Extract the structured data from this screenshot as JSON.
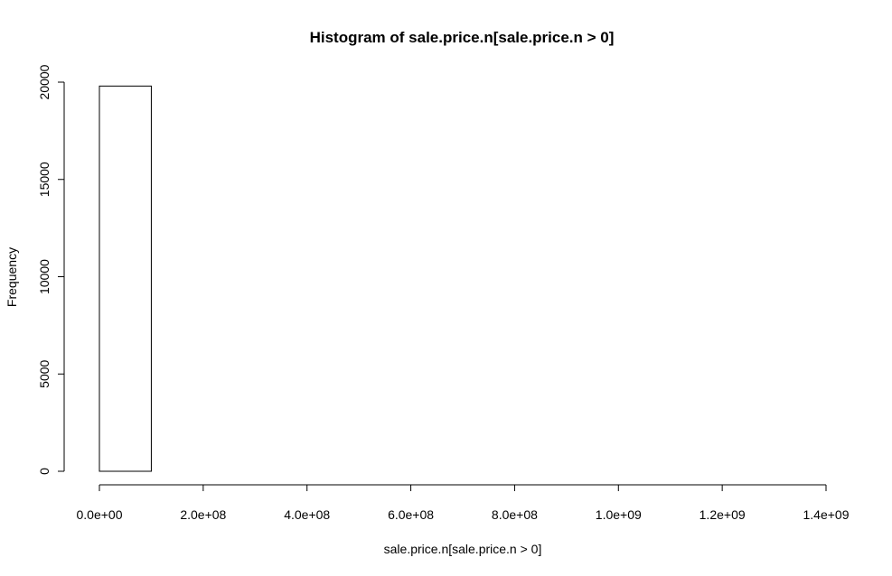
{
  "chart_data": {
    "type": "bar",
    "title": "Histogram of sale.price.n[sale.price.n > 0]",
    "xlabel": "sale.price.n[sale.price.n > 0]",
    "ylabel": "Frequency",
    "xlim": [
      0,
      1400000000
    ],
    "ylim": [
      0,
      20000
    ],
    "x_ticks": [
      0,
      200000000,
      400000000,
      600000000,
      800000000,
      1000000000,
      1200000000,
      1400000000
    ],
    "x_tick_labels": [
      "0.0e+00",
      "2.0e+08",
      "4.0e+08",
      "6.0e+08",
      "8.0e+08",
      "1.0e+09",
      "1.2e+09",
      "1.4e+09"
    ],
    "y_ticks": [
      0,
      5000,
      10000,
      15000,
      20000
    ],
    "y_tick_labels": [
      "0",
      "5000",
      "10000",
      "15000",
      "20000"
    ],
    "bins": [
      {
        "start": 0,
        "end": 100000000,
        "count": 19800
      },
      {
        "start": 100000000,
        "end": 200000000,
        "count": 0
      },
      {
        "start": 200000000,
        "end": 300000000,
        "count": 0
      },
      {
        "start": 300000000,
        "end": 400000000,
        "count": 0
      },
      {
        "start": 400000000,
        "end": 500000000,
        "count": 0
      },
      {
        "start": 500000000,
        "end": 600000000,
        "count": 0
      },
      {
        "start": 600000000,
        "end": 700000000,
        "count": 0
      },
      {
        "start": 700000000,
        "end": 800000000,
        "count": 0
      },
      {
        "start": 800000000,
        "end": 900000000,
        "count": 0
      },
      {
        "start": 900000000,
        "end": 1000000000,
        "count": 0
      },
      {
        "start": 1000000000,
        "end": 1100000000,
        "count": 0
      },
      {
        "start": 1100000000,
        "end": 1200000000,
        "count": 0
      },
      {
        "start": 1200000000,
        "end": 1300000000,
        "count": 0
      },
      {
        "start": 1300000000,
        "end": 1400000000,
        "count": 0
      }
    ],
    "grid": false,
    "colors": {
      "bar_fill": "#ffffff",
      "bar_stroke": "#000000"
    }
  }
}
